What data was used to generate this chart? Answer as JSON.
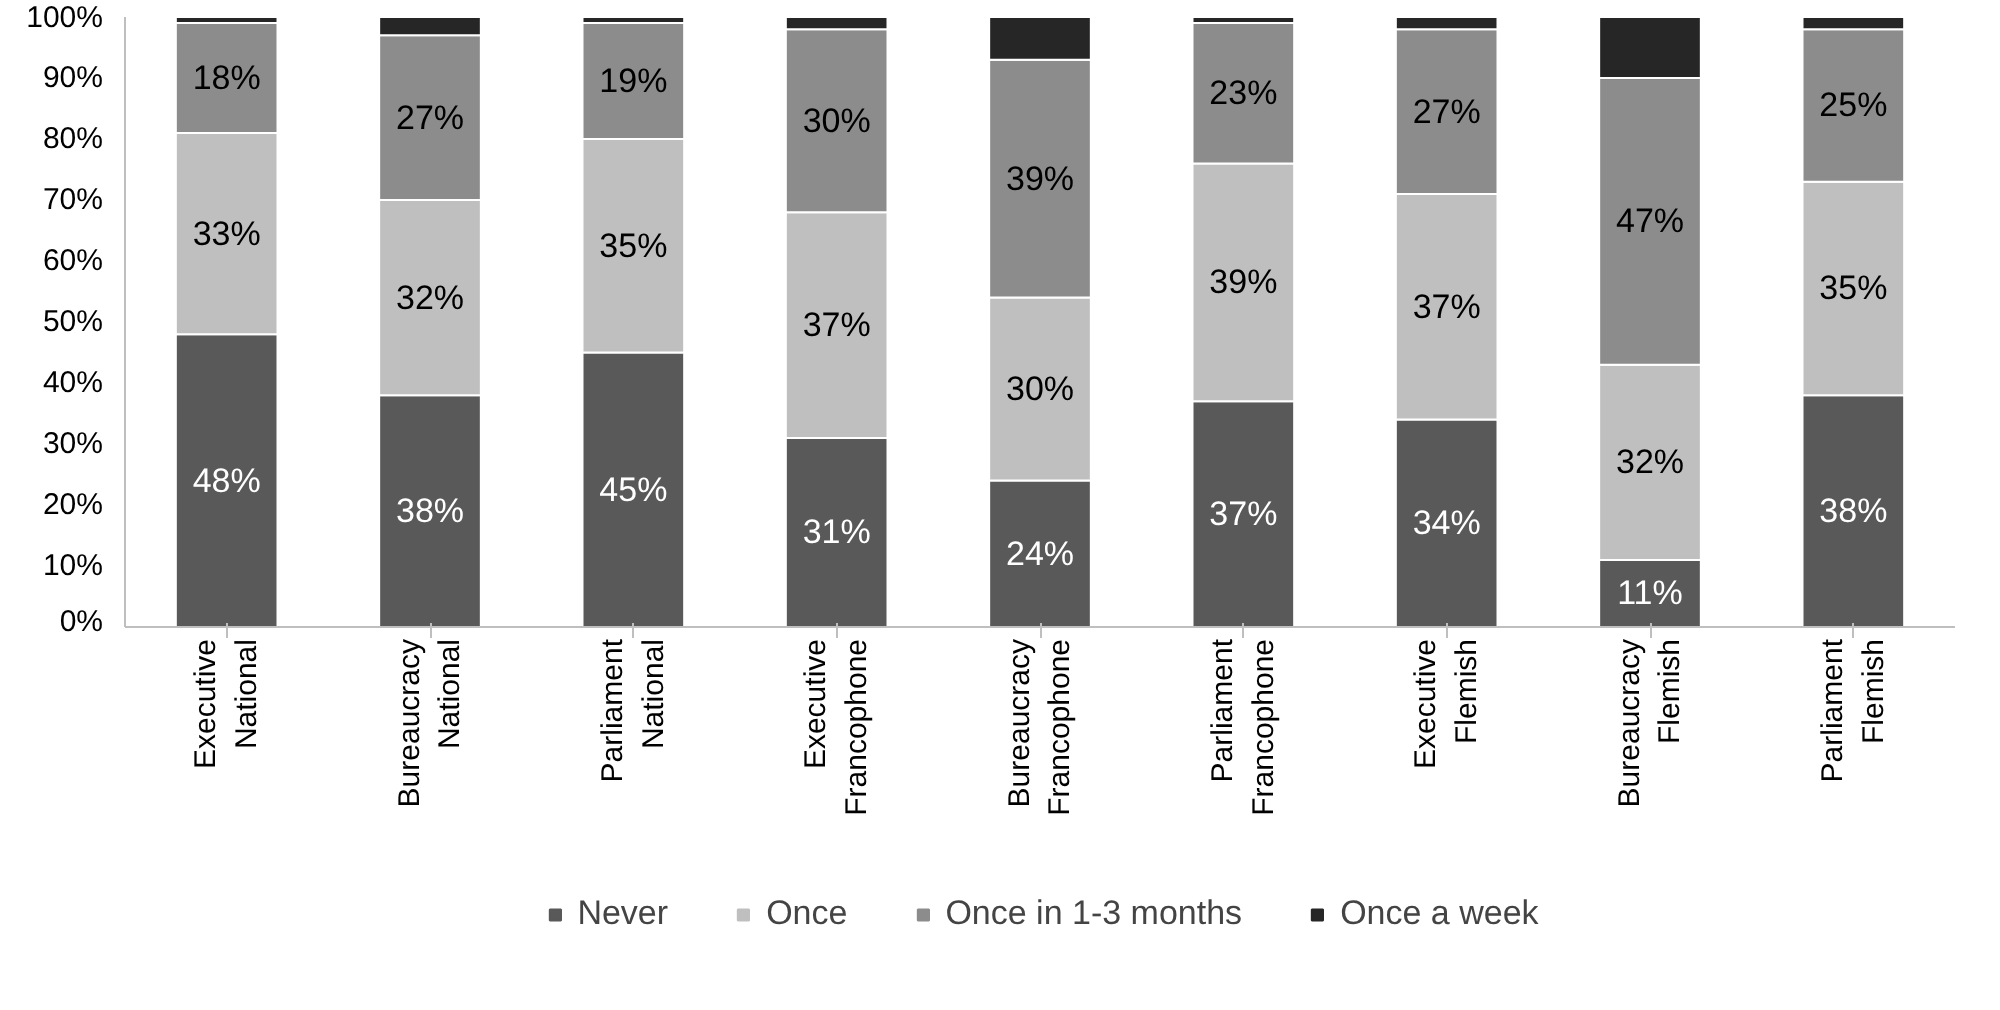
{
  "chart_data": {
    "type": "bar",
    "stacked": true,
    "categories": [
      "Executive\nNational",
      "Bureaucracy\nNational",
      "Parliament\nNational",
      "Executive\nFrancophone",
      "Bureaucracy\nFrancophone",
      "Parliament\nFrancophone",
      "Executive\nFlemish",
      "Bureaucracy\nFlemish",
      "Parliament\nFlemish"
    ],
    "series": [
      {
        "name": "Never",
        "color": "#595959",
        "values": [
          48,
          38,
          45,
          31,
          24,
          37,
          34,
          11,
          38
        ],
        "value_labels": [
          "48%",
          "38%",
          "45%",
          "31%",
          "24%",
          "37%",
          "34%",
          "11%",
          "38%"
        ]
      },
      {
        "name": "Once",
        "color": "#bfbfbf",
        "values": [
          33,
          32,
          35,
          37,
          30,
          39,
          37,
          32,
          35
        ],
        "value_labels": [
          "33%",
          "32%",
          "35%",
          "37%",
          "30%",
          "39%",
          "37%",
          "32%",
          "35%"
        ]
      },
      {
        "name": "Once in 1-3 months",
        "color": "#8c8c8c",
        "values": [
          18,
          27,
          19,
          30,
          39,
          23,
          27,
          47,
          25
        ],
        "value_labels": [
          "18%",
          "27%",
          "19%",
          "30%",
          "39%",
          "23%",
          "27%",
          "47%",
          "25%"
        ]
      },
      {
        "name": "Once a week",
        "color": "#262626",
        "values": [
          1,
          3,
          1,
          2,
          7,
          1,
          2,
          10,
          2
        ]
      }
    ],
    "ylim": [
      0,
      100
    ],
    "yticks": [
      {
        "value": 0,
        "label": "0%"
      },
      {
        "value": 10,
        "label": "10%"
      },
      {
        "value": 20,
        "label": "20%"
      },
      {
        "value": 30,
        "label": "30%"
      },
      {
        "value": 40,
        "label": "40%"
      },
      {
        "value": 50,
        "label": "50%"
      },
      {
        "value": 60,
        "label": "60%"
      },
      {
        "value": 70,
        "label": "70%"
      },
      {
        "value": 80,
        "label": "80%"
      },
      {
        "value": 90,
        "label": "90%"
      },
      {
        "value": 100,
        "label": "100%"
      }
    ],
    "grid": false,
    "legend": "bottom"
  }
}
